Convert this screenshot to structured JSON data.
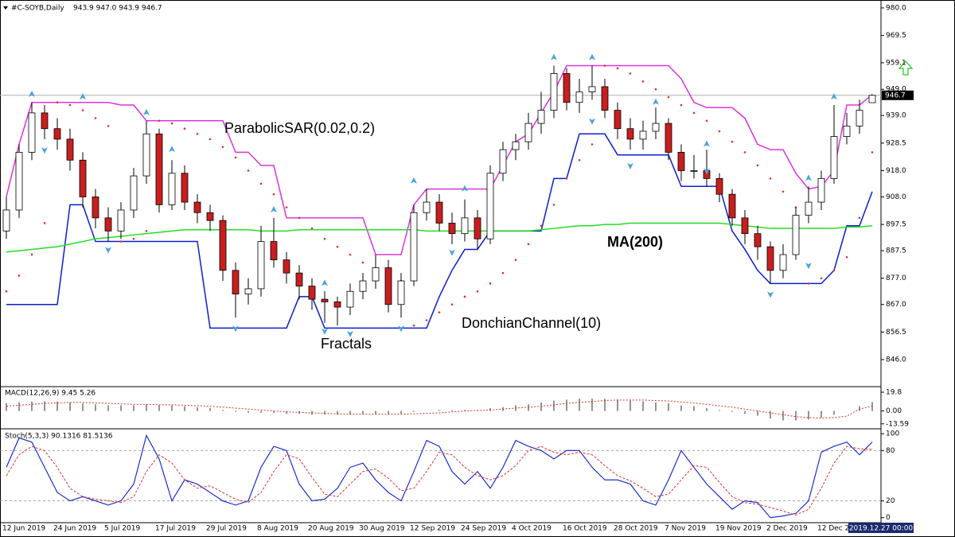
{
  "chart_data": [
    {
      "type": "candlestick",
      "title": "#C-SOYB,Daily",
      "ohlc_label": "943.9 947.0 943.9 946.7",
      "categories": [
        "12 Jun 2019",
        null,
        null,
        null,
        "24 Jun 2019",
        null,
        null,
        null,
        "5 Jul 2019",
        null,
        null,
        null,
        "17 Jul 2019",
        null,
        null,
        null,
        "29 Jul 2019",
        null,
        null,
        null,
        "8 Aug 2019",
        null,
        null,
        null,
        "20 Aug 2019",
        null,
        null,
        null,
        "30 Aug 2019",
        null,
        null,
        null,
        "12 Sep 2019",
        null,
        null,
        null,
        "24 Sep 2019",
        null,
        null,
        null,
        "4 Oct 2019",
        null,
        null,
        null,
        "16 Oct 2019",
        null,
        null,
        null,
        "28 Oct 2019",
        null,
        null,
        null,
        "7 Nov 2019",
        null,
        null,
        null,
        "19 Nov 2019",
        null,
        null,
        null,
        "2 Dec 2019",
        null,
        null,
        null,
        "12 Dec 2019",
        null,
        null,
        null,
        "2019.12.27 00:00"
      ],
      "open": [
        895,
        903,
        925,
        940,
        934,
        930,
        922,
        908,
        900,
        895,
        903,
        916,
        932,
        905,
        917,
        906,
        902,
        899,
        880,
        871,
        873,
        891,
        884,
        879,
        874,
        869,
        868,
        866,
        872,
        876,
        881,
        867,
        876,
        902,
        906,
        898,
        894,
        900,
        892,
        917,
        926,
        929,
        936,
        941,
        955,
        944,
        948,
        950,
        941,
        934,
        930,
        933,
        936,
        925,
        918,
        918,
        915,
        909,
        900,
        894,
        889,
        880,
        886,
        901,
        906,
        915,
        931,
        935,
        943.9
      ],
      "high": [
        908,
        928,
        944,
        943,
        938,
        934,
        925,
        911,
        904,
        906,
        919,
        937,
        934,
        922,
        920,
        909,
        905,
        901,
        883,
        877,
        897,
        900,
        887,
        882,
        877,
        872,
        870,
        875,
        879,
        886,
        884,
        879,
        905,
        911,
        909,
        902,
        907,
        903,
        920,
        929,
        932,
        940,
        948,
        958,
        957,
        953,
        958,
        953,
        944,
        938,
        937,
        942,
        938,
        928,
        924,
        926,
        917,
        911,
        903,
        897,
        891,
        890,
        904,
        912,
        918,
        943,
        940,
        945,
        947
      ],
      "low": [
        892,
        900,
        922,
        930,
        926,
        918,
        904,
        896,
        891,
        892,
        900,
        913,
        902,
        903,
        903,
        898,
        895,
        876,
        862,
        867,
        870,
        881,
        875,
        869,
        865,
        860,
        859,
        863,
        869,
        873,
        864,
        862,
        874,
        899,
        895,
        890,
        891,
        888,
        890,
        914,
        922,
        926,
        932,
        938,
        941,
        940,
        945,
        938,
        930,
        926,
        926,
        930,
        922,
        914,
        915,
        912,
        906,
        897,
        890,
        884,
        875,
        877,
        884,
        898,
        903,
        913,
        928,
        932,
        943.9
      ],
      "close": [
        903,
        925,
        940,
        934,
        930,
        922,
        908,
        900,
        895,
        903,
        916,
        932,
        905,
        917,
        906,
        902,
        899,
        880,
        871,
        873,
        891,
        884,
        879,
        874,
        869,
        868,
        866,
        872,
        876,
        881,
        867,
        876,
        902,
        906,
        898,
        894,
        900,
        892,
        917,
        926,
        929,
        936,
        941,
        955,
        944,
        948,
        950,
        941,
        934,
        930,
        933,
        936,
        925,
        918,
        918,
        915,
        909,
        900,
        894,
        889,
        880,
        886,
        901,
        906,
        915,
        931,
        935,
        941,
        946.7
      ],
      "up_color": "#ffffff",
      "down_color": "#c81e1e",
      "ma": {
        "name": "MA(200)",
        "color": "#22dd22",
        "values": [
          887,
          887.5,
          888,
          888.5,
          889,
          890,
          891,
          892,
          892.5,
          893,
          893.5,
          894,
          894.5,
          895,
          895.5,
          895.5,
          895.5,
          895.5,
          895.5,
          895.5,
          895,
          895,
          895,
          895.5,
          895.5,
          895.5,
          895.5,
          895.5,
          895.5,
          895.5,
          895.5,
          895.5,
          895.5,
          895,
          895,
          895,
          895,
          895,
          895,
          895,
          895,
          895,
          895.5,
          896,
          896.5,
          897,
          897,
          897.5,
          897.5,
          898,
          898,
          898,
          898,
          898,
          898,
          898,
          898,
          897.5,
          897,
          896.5,
          896,
          896,
          896,
          896,
          896,
          896,
          896.5,
          896.5,
          897
        ]
      },
      "donchian": {
        "name": "DonchianChannel(10)",
        "upper_color": "#dd33dd",
        "lower_color": "#0a1ed0",
        "upper": [
          908,
          928,
          944,
          944,
          944,
          944,
          944,
          944,
          944,
          943,
          943,
          937,
          937,
          937,
          937,
          937,
          937,
          937,
          925,
          925,
          920,
          920,
          900,
          900,
          900,
          900,
          900,
          900,
          900,
          886,
          886,
          886,
          905,
          911,
          911,
          911,
          911,
          911,
          911,
          920,
          929,
          932,
          940,
          948,
          958,
          958,
          958,
          958,
          958,
          958,
          958,
          958,
          958,
          953,
          944,
          942,
          942,
          942,
          938,
          928,
          926,
          926,
          917,
          911,
          912,
          918,
          943,
          943,
          947
        ],
        "lower": [
          867,
          867,
          867,
          867,
          867,
          905,
          905,
          891,
          891,
          891,
          891,
          891,
          891,
          891,
          891,
          891,
          858,
          858,
          858,
          858,
          858,
          858,
          858,
          870,
          870,
          858,
          858,
          858,
          858,
          858,
          858,
          858,
          858,
          858,
          870,
          880,
          888,
          888,
          895,
          895,
          895,
          895,
          895,
          915,
          915,
          932,
          932,
          932,
          924,
          924,
          924,
          924,
          924,
          912,
          912,
          912,
          912,
          895,
          888,
          880,
          875,
          875,
          875,
          875,
          875,
          880,
          897,
          897,
          910
        ]
      },
      "sar": {
        "name": "ParabolicSAR(0.02,0.2)",
        "color": "#e03030",
        "values": [
          872,
          878,
          886,
          898,
          944,
          943,
          941,
          938,
          935,
          891,
          892,
          895,
          937,
          936,
          934,
          932,
          930,
          927,
          923,
          918,
          913,
          909,
          904,
          900,
          896,
          892,
          889,
          886,
          883,
          880,
          878,
          876,
          859,
          861,
          864,
          867,
          870,
          872,
          875,
          879,
          884,
          890,
          897,
          905,
          915,
          922,
          928,
          958,
          957,
          955,
          952,
          949,
          946,
          943,
          940,
          937,
          933,
          929,
          925,
          920,
          915,
          910,
          904,
          875,
          877,
          880,
          885,
          900,
          925
        ]
      },
      "fractals": {
        "name": "Fractals",
        "color": "#4aa3d8",
        "up_x": [
          2,
          6,
          11,
          13,
          21,
          25,
          32,
          36,
          43,
          46,
          51,
          55,
          63,
          65
        ],
        "up_values": [
          947,
          946,
          940,
          926,
          903,
          875,
          914,
          911,
          961,
          961,
          944,
          928,
          915,
          946
        ],
        "down_x": [
          3,
          8,
          18,
          25,
          27,
          31,
          35,
          46,
          49,
          55,
          60,
          63
        ],
        "down_values": [
          926,
          888,
          858,
          857,
          856,
          858,
          887,
          937,
          920,
          918,
          871,
          882
        ]
      },
      "last_price": 946.7,
      "ylim": [
        836,
        981.5
      ],
      "yticks": [
        {
          "value": 980,
          "label": "980.0"
        },
        969.5,
        959.1,
        {
          "value": 949,
          "label": "949.0"
        },
        {
          "value": 939,
          "label": "939.0"
        },
        928.5,
        {
          "value": 918,
          "label": "918.0"
        },
        {
          "value": 908,
          "label": "908.0"
        },
        897.5,
        887.5,
        {
          "value": 877,
          "label": "877.0"
        },
        {
          "value": 867,
          "label": "867.0"
        },
        856.5,
        {
          "value": 846,
          "label": "846.0"
        }
      ]
    },
    {
      "type": "macd",
      "title": "MACD(12,26,9) 9.45 5.26",
      "histogram": [
        8,
        9,
        10,
        10,
        10,
        9,
        8,
        7,
        6,
        6,
        6,
        7,
        6,
        6,
        5,
        4,
        3,
        1,
        -1,
        -2,
        -2,
        -2,
        -3,
        -3,
        -4,
        -4,
        -4,
        -4,
        -3,
        -3,
        -3,
        -3,
        -1,
        0,
        1,
        1,
        1,
        1,
        3,
        4,
        6,
        7,
        9,
        11,
        12,
        13,
        13,
        13,
        12,
        11,
        10,
        9,
        8,
        6,
        5,
        3,
        1,
        -1,
        -3,
        -5,
        -8,
        -10,
        -10,
        -9,
        -7,
        -4,
        0,
        5,
        9.45
      ],
      "signal": [
        5,
        6,
        7,
        8,
        8.5,
        9,
        9,
        8.5,
        8,
        7.5,
        7,
        7,
        6.5,
        6.5,
        6,
        5.5,
        5,
        4,
        3,
        2,
        1,
        0,
        -1,
        -1.5,
        -2,
        -2.5,
        -3,
        -3.5,
        -3.5,
        -3.5,
        -3.5,
        -3.5,
        -3,
        -2.5,
        -2,
        -1,
        0,
        0.5,
        1,
        2,
        3,
        4,
        5,
        6.5,
        8,
        9,
        10,
        11,
        11.5,
        11.5,
        11.5,
        11,
        10.5,
        9.5,
        8.5,
        7,
        5.5,
        4,
        2,
        0,
        -2,
        -4,
        -6,
        -7,
        -7.5,
        -7,
        -5.5,
        2,
        5.26
      ],
      "histogram_color": "#707070",
      "signal_color": "#e03030",
      "ylim": [
        -18,
        24
      ],
      "yticks": [
        19.8,
        {
          "value": 0,
          "label": "0.00"
        },
        -13.59
      ]
    },
    {
      "type": "stochastic",
      "title": "Stoch(5,3,3) 90.1316 81.5136",
      "main": [
        60,
        95,
        90,
        60,
        30,
        20,
        25,
        20,
        15,
        20,
        40,
        98,
        70,
        20,
        45,
        40,
        30,
        20,
        15,
        20,
        60,
        85,
        80,
        40,
        20,
        22,
        35,
        60,
        65,
        45,
        30,
        20,
        55,
        92,
        85,
        55,
        40,
        55,
        35,
        60,
        92,
        85,
        80,
        70,
        80,
        80,
        60,
        45,
        45,
        40,
        20,
        15,
        45,
        80,
        60,
        40,
        25,
        10,
        20,
        18,
        0,
        2,
        5,
        20,
        78,
        85,
        90,
        75,
        90.13
      ],
      "signal": [
        50,
        75,
        85,
        80,
        60,
        35,
        25,
        22,
        20,
        18,
        25,
        55,
        75,
        65,
        45,
        35,
        38,
        30,
        22,
        18,
        30,
        55,
        75,
        70,
        48,
        28,
        25,
        40,
        55,
        58,
        47,
        32,
        35,
        55,
        78,
        75,
        60,
        50,
        45,
        50,
        62,
        80,
        85,
        78,
        75,
        78,
        75,
        62,
        50,
        44,
        35,
        25,
        28,
        45,
        62,
        60,
        42,
        25,
        18,
        16,
        12,
        8,
        3,
        10,
        35,
        65,
        85,
        82,
        81.51
      ],
      "main_color": "#0a1ed0",
      "signal_color": "#e03030",
      "levels": [
        80,
        20
      ],
      "ylim": [
        -6,
        104
      ],
      "yticks": [
        100,
        80,
        20,
        0
      ]
    }
  ]
}
